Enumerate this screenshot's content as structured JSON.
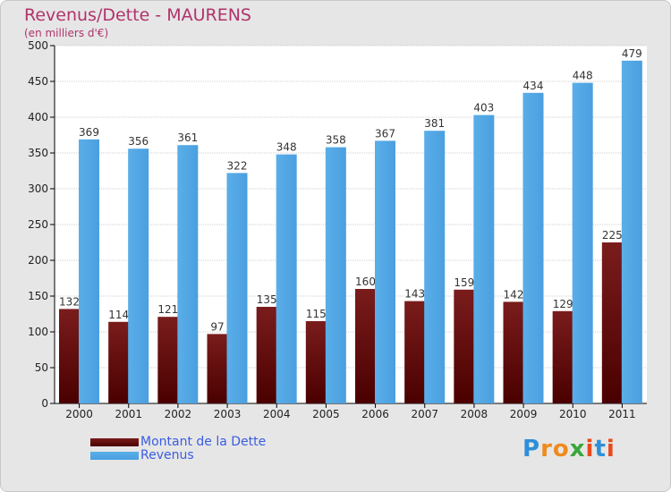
{
  "title": "Revenus/Dette - MAURENS",
  "subtitle": "(en milliers d'€)",
  "colors": {
    "debt": "#7a1c1c",
    "debt_dark": "#4a0000",
    "revenue": "#4a9fe0",
    "revenue_light": "#5aaee8",
    "title": "#b0336b",
    "legend_text": "#3a5de0",
    "plot_bg": "#ffffff",
    "frame_bg": "#e6e6e6"
  },
  "chart_data": {
    "type": "bar",
    "categories": [
      "2000",
      "2001",
      "2002",
      "2003",
      "2004",
      "2005",
      "2006",
      "2007",
      "2008",
      "2009",
      "2010",
      "2011"
    ],
    "series": [
      {
        "name": "Montant de la Dette",
        "values": [
          132,
          114,
          121,
          97,
          135,
          115,
          160,
          143,
          159,
          142,
          129,
          225
        ]
      },
      {
        "name": "Revenus",
        "values": [
          369,
          356,
          361,
          322,
          348,
          358,
          367,
          381,
          403,
          434,
          448,
          479
        ]
      }
    ],
    "ylim": [
      0,
      500
    ],
    "yticks": [
      "0",
      "50",
      "100",
      "150",
      "200",
      "250",
      "300",
      "350",
      "400",
      "450",
      "500"
    ],
    "grid": true,
    "legend_position": "bottom-left"
  },
  "legend": [
    {
      "label": "Montant de la Dette"
    },
    {
      "label": "Revenus"
    }
  ],
  "logo": {
    "letters": [
      "P",
      "r",
      "o",
      "x",
      "i",
      "t",
      "i"
    ],
    "letter_colors": [
      "#2f8fd8",
      "#f08a1c",
      "#f08a1c",
      "#3aa63a",
      "#e84a1c",
      "#2f8fd8",
      "#e84a1c"
    ]
  }
}
